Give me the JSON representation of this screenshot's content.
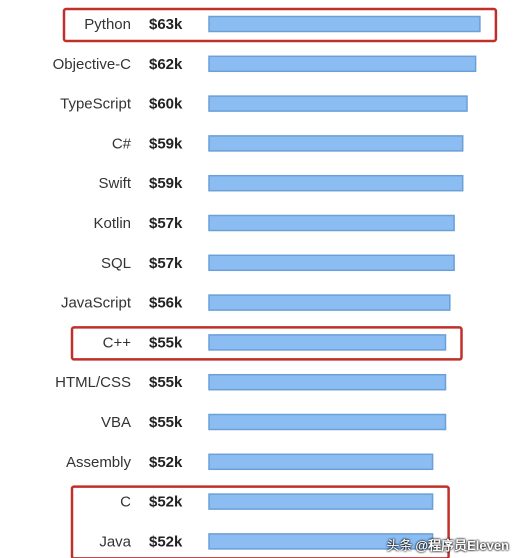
{
  "chart_data": {
    "type": "bar",
    "orientation": "horizontal",
    "title": "",
    "xlabel": "",
    "ylabel": "",
    "categories": [
      "Python",
      "Objective-C",
      "TypeScript",
      "C#",
      "Swift",
      "Kotlin",
      "SQL",
      "JavaScript",
      "C++",
      "HTML/CSS",
      "VBA",
      "Assembly",
      "C",
      "Java"
    ],
    "values": [
      63,
      62,
      60,
      59,
      59,
      57,
      57,
      56,
      55,
      55,
      55,
      52,
      52,
      52
    ],
    "value_labels": [
      "$63k",
      "$62k",
      "$60k",
      "$59k",
      "$59k",
      "$57k",
      "$57k",
      "$56k",
      "$55k",
      "$55k",
      "$55k",
      "$52k",
      "$52k",
      "$52k"
    ],
    "unit": "$k",
    "grid": false,
    "legend": "none",
    "bar_color": "#8cbdf2",
    "bar_border_color": "#6a9fd8",
    "highlight_color": "#c0302b",
    "highlighted_groups": [
      [
        "Python"
      ],
      [
        "C++"
      ],
      [
        "C",
        "Java"
      ]
    ]
  },
  "watermark": {
    "prefix": "头条",
    "handle": "@程序员Eleven"
  }
}
